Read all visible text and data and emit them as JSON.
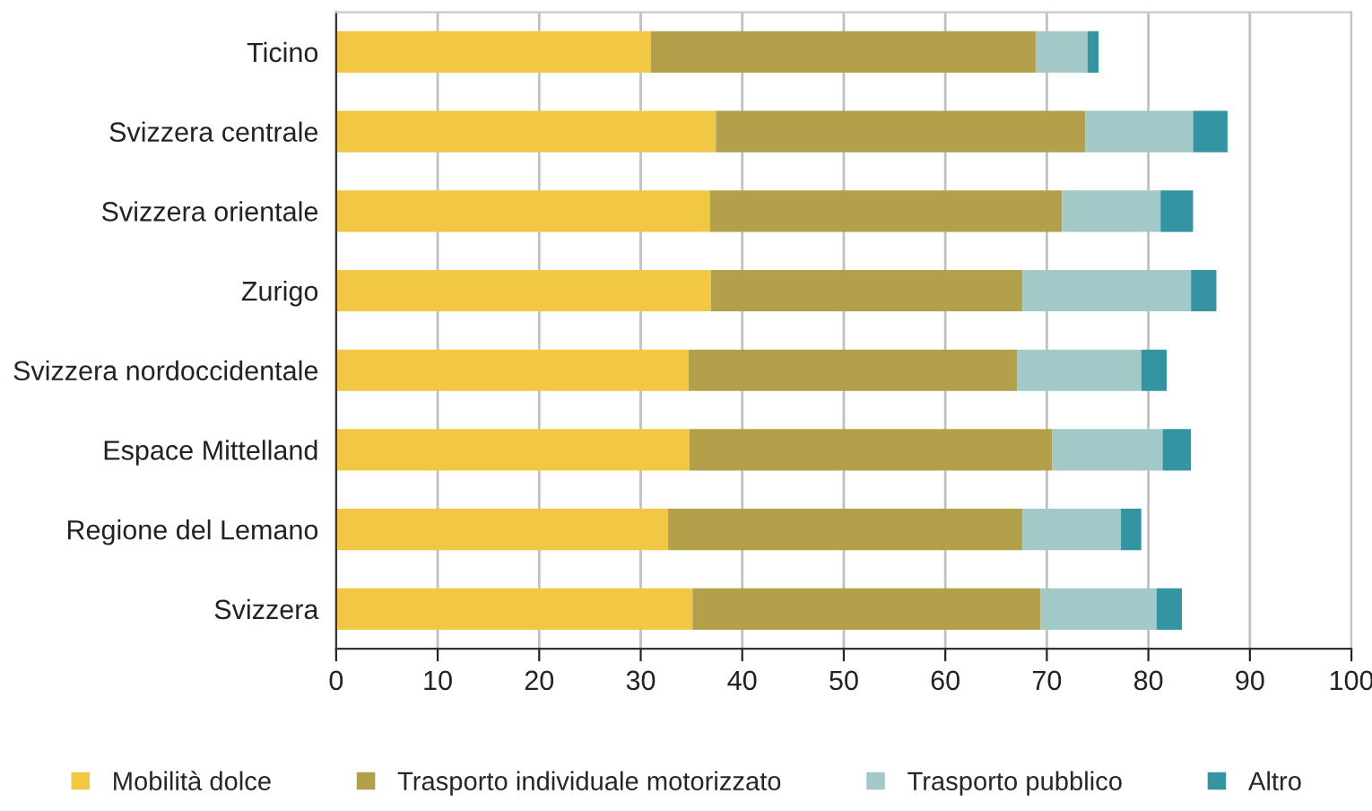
{
  "chart_data": {
    "type": "bar",
    "orientation": "horizontal",
    "stacked": true,
    "categories": [
      "Ticino",
      "Svizzera centrale",
      "Svizzera orientale",
      "Zurigo",
      "Svizzera nordoccidentale",
      "Espace Mittelland",
      "Regione del Lemano",
      "Svizzera"
    ],
    "series": [
      {
        "name": "Mobilità dolce",
        "color": "#f1c743",
        "values": [
          31.0,
          37.4,
          36.8,
          36.9,
          34.7,
          34.8,
          32.7,
          35.1
        ]
      },
      {
        "name": "Trasporto individuale motorizzato",
        "color": "#b3a04a",
        "values": [
          37.9,
          36.4,
          34.7,
          30.7,
          32.4,
          35.7,
          34.9,
          34.3
        ]
      },
      {
        "name": "Trasporto pubblico",
        "color": "#a2c9c8",
        "values": [
          5.1,
          10.6,
          9.7,
          16.6,
          12.2,
          10.9,
          9.7,
          11.4
        ]
      },
      {
        "name": "Altro",
        "color": "#3494a2",
        "values": [
          1.1,
          3.4,
          3.2,
          2.5,
          2.5,
          2.8,
          2.0,
          2.5
        ]
      }
    ],
    "xlim": [
      0,
      100
    ],
    "xticks": [
      0,
      10,
      20,
      30,
      40,
      50,
      60,
      70,
      80,
      90,
      100
    ],
    "grid": "x",
    "legend": "bottom"
  }
}
